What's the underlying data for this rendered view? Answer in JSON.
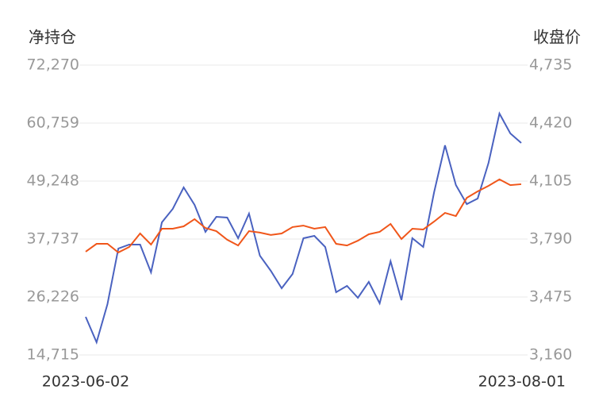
{
  "chart_data": {
    "type": "line",
    "y_title": "净持仓",
    "y2_title": "收盘价",
    "categories": [
      "2023-06-02",
      null,
      null,
      null,
      null,
      null,
      null,
      null,
      null,
      null,
      null,
      null,
      null,
      null,
      null,
      null,
      null,
      null,
      null,
      null,
      null,
      null,
      null,
      null,
      null,
      null,
      null,
      null,
      null,
      null,
      null,
      null,
      null,
      null,
      null,
      null,
      null,
      null,
      null,
      null,
      "2023-08-01"
    ],
    "ylim": [
      14715,
      72270
    ],
    "yticks": [
      {
        "value": 14715,
        "label": "14,715"
      },
      {
        "value": 26226,
        "label": "26,226"
      },
      {
        "value": 37737,
        "label": "37,737"
      },
      {
        "value": 49248,
        "label": "49,248"
      },
      {
        "value": 60759,
        "label": "60,759"
      },
      {
        "value": 72270,
        "label": "72,270"
      }
    ],
    "y2lim": [
      3160,
      4735
    ],
    "y2ticks": [
      {
        "value": 3160,
        "label": "3,160"
      },
      {
        "value": 3475,
        "label": "3,475"
      },
      {
        "value": 3790,
        "label": "3,790"
      },
      {
        "value": 4105,
        "label": "4,105"
      },
      {
        "value": 4420,
        "label": "4,420"
      },
      {
        "value": 4735,
        "label": "4,735"
      }
    ],
    "grid": true,
    "series": [
      {
        "color": "#4a62c0",
        "values": [
          22285,
          17240,
          24808,
          35846,
          36634,
          36634,
          31116,
          41049,
          43730,
          47987,
          44518,
          39157,
          42153,
          41995,
          37896,
          42784,
          34427,
          31431,
          27962,
          30800,
          37896,
          38369,
          36161,
          27174,
          28435,
          26070,
          29223,
          24966,
          33323,
          25597,
          37896,
          36161,
          47041,
          56344,
          48460,
          44676,
          45780,
          52875,
          62652,
          58710,
          56817
        ]
      },
      {
        "color": "#f0561a",
        "axis": "y2",
        "values": [
          3721,
          3764,
          3764,
          3717,
          3747,
          3820,
          3760,
          3846,
          3846,
          3859,
          3898,
          3850,
          3833,
          3786,
          3755,
          3833,
          3825,
          3812,
          3820,
          3855,
          3863,
          3846,
          3855,
          3764,
          3755,
          3781,
          3816,
          3829,
          3872,
          3790,
          3846,
          3842,
          3885,
          3932,
          3915,
          4014,
          4049,
          4079,
          4114,
          4083,
          4088
        ]
      }
    ]
  }
}
